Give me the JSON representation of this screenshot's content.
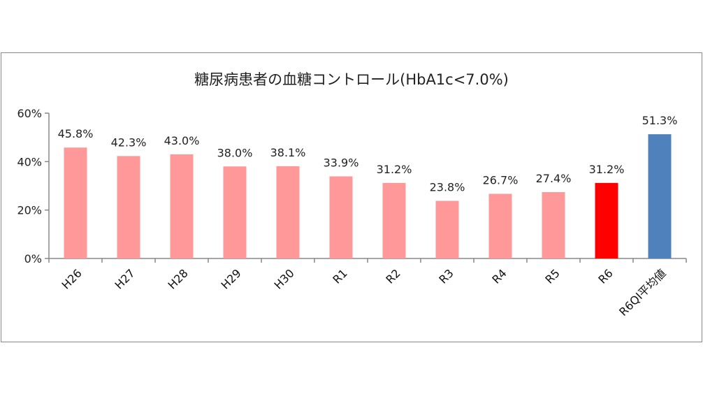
{
  "chart_data": {
    "type": "bar",
    "title": "糖尿病患者の血糖コントロール(HbA1c<7.0%)",
    "xlabel": "",
    "ylabel": "",
    "ylim": [
      0,
      0.6
    ],
    "yticks": [
      "0%",
      "20%",
      "40%",
      "60%"
    ],
    "grid": false,
    "legend": "none",
    "categories": [
      "H26",
      "H27",
      "H28",
      "H29",
      "H30",
      "R1",
      "R2",
      "R3",
      "R4",
      "R5",
      "R6",
      "R6QI平均値"
    ],
    "values": [
      45.8,
      42.3,
      43.0,
      38.0,
      38.1,
      33.9,
      31.2,
      23.8,
      26.7,
      27.4,
      31.2,
      51.3
    ],
    "data_labels": [
      "45.8%",
      "42.3%",
      "43.0%",
      "38.0%",
      "38.1%",
      "33.9%",
      "31.2%",
      "23.8%",
      "26.7%",
      "27.4%",
      "31.2%",
      "51.3%"
    ],
    "colors": [
      "#ff9999",
      "#ff9999",
      "#ff9999",
      "#ff9999",
      "#ff9999",
      "#ff9999",
      "#ff9999",
      "#ff9999",
      "#ff9999",
      "#ff9999",
      "#ff0000",
      "#4f81bd"
    ]
  }
}
